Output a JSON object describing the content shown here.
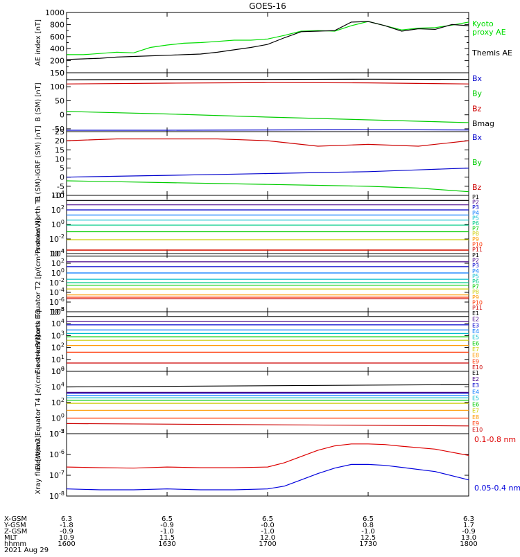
{
  "title": "GOES-16",
  "chart_data": [
    {
      "type": "line",
      "ylabel": "AE index [nT]",
      "ylim": [
        0,
        1000
      ],
      "yticks": [
        "0",
        "200",
        "400",
        "600",
        "800",
        "1000"
      ],
      "yticks_minor": [
        "100",
        "300",
        "500",
        "700",
        "900"
      ],
      "series": [
        {
          "name": "Kyoto proxy AE",
          "color": "#00dd00",
          "x": [
            "1600",
            "1605",
            "1610",
            "1615",
            "1620",
            "1625",
            "1630",
            "1635",
            "1640",
            "1645",
            "1650",
            "1655",
            "1700",
            "1705",
            "1710",
            "1715",
            "1720",
            "1725",
            "1730",
            "1735",
            "1740",
            "1745",
            "1750",
            "1755",
            "1800"
          ],
          "values": [
            300,
            300,
            320,
            340,
            330,
            420,
            460,
            490,
            500,
            520,
            540,
            540,
            560,
            620,
            690,
            700,
            690,
            780,
            850,
            780,
            710,
            740,
            750,
            790,
            840
          ]
        },
        {
          "name": "Themis AE",
          "color": "#000000",
          "x": [
            "1600",
            "1605",
            "1610",
            "1615",
            "1620",
            "1625",
            "1630",
            "1635",
            "1640",
            "1645",
            "1650",
            "1655",
            "1700",
            "1705",
            "1710",
            "1715",
            "1720",
            "1725",
            "1730",
            "1735",
            "1740",
            "1745",
            "1750",
            "1755",
            "1800"
          ],
          "values": [
            220,
            230,
            240,
            260,
            270,
            280,
            290,
            300,
            310,
            340,
            380,
            420,
            470,
            580,
            680,
            690,
            700,
            840,
            850,
            780,
            690,
            730,
            720,
            800,
            780
          ]
        }
      ]
    },
    {
      "type": "line",
      "ylabel": "B (SM) [nT]",
      "ylim": [
        -60,
        150
      ],
      "yticks": [
        "-50",
        "0",
        "50",
        "100",
        "150"
      ],
      "series": [
        {
          "name": "Bx",
          "color": "#0000cc",
          "x": [
            "1600",
            "1630",
            "1700",
            "1730",
            "1800"
          ],
          "values": [
            -55,
            -55,
            -54,
            -53,
            -54
          ]
        },
        {
          "name": "By",
          "color": "#00cc00",
          "x": [
            "1600",
            "1630",
            "1700",
            "1730",
            "1800"
          ],
          "values": [
            12,
            3,
            -8,
            -18,
            -28
          ]
        },
        {
          "name": "Bz",
          "color": "#cc0000",
          "x": [
            "1600",
            "1630",
            "1700",
            "1730",
            "1800"
          ],
          "values": [
            110,
            113,
            115,
            114,
            110
          ]
        },
        {
          "name": "Bmag",
          "color": "#000000",
          "x": [
            "1600",
            "1630",
            "1700",
            "1730",
            "1800"
          ],
          "values": [
            125,
            126,
            126,
            127,
            126
          ]
        }
      ]
    },
    {
      "type": "line",
      "ylabel": "B (SM)-IGRF (SM) [nT]",
      "ylim": [
        -10,
        25
      ],
      "yticks": [
        "-10",
        "-5",
        "0",
        "5",
        "10",
        "15",
        "20",
        "25"
      ],
      "series": [
        {
          "name": "Bx",
          "color": "#0000cc",
          "x": [
            "1600",
            "1615",
            "1630",
            "1645",
            "1700",
            "1715",
            "1730",
            "1745",
            "1800"
          ],
          "values": [
            0,
            0.5,
            1,
            1.5,
            2,
            2.5,
            3,
            4,
            5
          ]
        },
        {
          "name": "By",
          "color": "#00cc00",
          "x": [
            "1600",
            "1615",
            "1630",
            "1645",
            "1700",
            "1715",
            "1730",
            "1745",
            "1800"
          ],
          "values": [
            -2,
            -2.5,
            -3,
            -3.5,
            -4,
            -4.5,
            -5,
            -6,
            -8
          ]
        },
        {
          "name": "Bz",
          "color": "#cc0000",
          "x": [
            "1600",
            "1615",
            "1630",
            "1645",
            "1700",
            "1715",
            "1730",
            "1745",
            "1800"
          ],
          "values": [
            20,
            21,
            21,
            21,
            20,
            17,
            18,
            17,
            20
          ]
        }
      ]
    },
    {
      "type": "line",
      "ylabel": "Protons North T1",
      "ylog": true,
      "ylim": [
        0.0001,
        10000
      ],
      "yticks": [
        "10^-4",
        "10^-2",
        "10^0",
        "10^2",
        "10^4"
      ],
      "series": [
        {
          "name": "P1",
          "color": "#000000",
          "values": [
            2000,
            2000
          ]
        },
        {
          "name": "P2",
          "color": "#440088",
          "values": [
            500,
            500
          ]
        },
        {
          "name": "P3",
          "color": "#0000cc",
          "values": [
            100,
            100
          ]
        },
        {
          "name": "P4",
          "color": "#0077ff",
          "values": [
            20,
            20
          ]
        },
        {
          "name": "P5",
          "color": "#00bbcc",
          "values": [
            4,
            4
          ]
        },
        {
          "name": "P6",
          "color": "#00cc88",
          "values": [
            0.8,
            0.8
          ]
        },
        {
          "name": "P7",
          "color": "#00cc00",
          "values": [
            0.1,
            0.1
          ]
        },
        {
          "name": "P8",
          "color": "#cccc00",
          "values": [
            0.008,
            0.008
          ]
        },
        {
          "name": "P9",
          "color": "#ff9900",
          "values": [
            0.0003,
            0.0003
          ]
        },
        {
          "name": "P10",
          "color": "#ff3300",
          "values": [
            0.0003,
            0.0003
          ]
        },
        {
          "name": "P11",
          "color": "#cc0000",
          "values": [
            0.0003,
            0.0003
          ]
        }
      ]
    },
    {
      "type": "line",
      "ylabel": "Protons Equator T2 [p/(cm²-s-sr-keV)]",
      "ylog": true,
      "ylim": [
        1e-08,
        10000
      ],
      "yticks": [
        "10^-8",
        "10^-6",
        "10^-4",
        "10^-2",
        "10^0",
        "10^2",
        "10^4"
      ],
      "series": [
        {
          "name": "P1",
          "color": "#000000",
          "values": [
            3000,
            3000
          ]
        },
        {
          "name": "P2",
          "color": "#440088",
          "values": [
            200,
            200
          ]
        },
        {
          "name": "P3",
          "color": "#0000cc",
          "values": [
            20,
            20
          ]
        },
        {
          "name": "P4",
          "color": "#0077ff",
          "values": [
            1,
            1
          ]
        },
        {
          "name": "P5",
          "color": "#00bbcc",
          "values": [
            0.05,
            0.05
          ]
        },
        {
          "name": "P6",
          "color": "#00cc88",
          "values": [
            0.01,
            0.01
          ]
        },
        {
          "name": "P7",
          "color": "#00cc00",
          "values": [
            0.003,
            0.003
          ]
        },
        {
          "name": "P8",
          "color": "#cccc00",
          "values": [
            0.0005,
            0.0005
          ]
        },
        {
          "name": "P9",
          "color": "#ff9900",
          "values": [
            3e-05,
            3e-05
          ]
        },
        {
          "name": "P10",
          "color": "#ff3300",
          "values": [
            1e-05,
            1e-05
          ]
        },
        {
          "name": "P11",
          "color": "#cc0000",
          "values": [
            5e-06,
            5e-06
          ]
        }
      ]
    },
    {
      "type": "line",
      "ylabel": "Electrons North T3",
      "ylog": true,
      "ylim": [
        1,
        100000
      ],
      "yticks": [
        "10^0",
        "10^1",
        "10^2",
        "10^3",
        "10^4",
        "10^5"
      ],
      "series": [
        {
          "name": "E1",
          "color": "#000000",
          "values": [
            40000,
            40000
          ]
        },
        {
          "name": "E2",
          "color": "#440088",
          "values": [
            15000,
            15000
          ]
        },
        {
          "name": "E3",
          "color": "#0000cc",
          "values": [
            8000,
            8000
          ]
        },
        {
          "name": "E4",
          "color": "#0077ff",
          "values": [
            3000,
            3000
          ]
        },
        {
          "name": "E5",
          "color": "#00bbcc",
          "values": [
            1500,
            1500
          ]
        },
        {
          "name": "E6",
          "color": "#00cc00",
          "values": [
            800,
            800
          ]
        },
        {
          "name": "E7",
          "color": "#cccc00",
          "values": [
            400,
            400
          ]
        },
        {
          "name": "E8",
          "color": "#ff9900",
          "values": [
            150,
            150
          ]
        },
        {
          "name": "E9",
          "color": "#ff3300",
          "values": [
            40,
            40
          ]
        },
        {
          "name": "E10",
          "color": "#cc0000",
          "values": [
            5,
            5
          ]
        }
      ]
    },
    {
      "type": "line",
      "ylabel": "Electrons Equator T4 [e/(cm²-s-sr-keV)]",
      "ylog": true,
      "ylim": [
        0.01,
        1000000
      ],
      "yticks": [
        "10^-2",
        "10^0",
        "10^2",
        "10^4",
        "10^6"
      ],
      "series": [
        {
          "name": "E1",
          "color": "#000000",
          "values": [
            10000,
            20000
          ]
        },
        {
          "name": "E2",
          "color": "#440088",
          "values": [
            2000,
            2000
          ]
        },
        {
          "name": "E3",
          "color": "#0000cc",
          "values": [
            1500,
            1500
          ]
        },
        {
          "name": "E4",
          "color": "#0077ff",
          "values": [
            800,
            800
          ]
        },
        {
          "name": "E5",
          "color": "#00bbcc",
          "values": [
            400,
            400
          ]
        },
        {
          "name": "E6",
          "color": "#00cc00",
          "values": [
            200,
            200
          ]
        },
        {
          "name": "E7",
          "color": "#cccc00",
          "values": [
            80,
            80
          ]
        },
        {
          "name": "E8",
          "color": "#ff9900",
          "values": [
            10,
            10
          ]
        },
        {
          "name": "E9",
          "color": "#ff3300",
          "values": [
            1,
            1
          ]
        },
        {
          "name": "E10",
          "color": "#cc0000",
          "values": [
            0.2,
            0.1
          ]
        }
      ]
    },
    {
      "type": "line",
      "ylabel": "Xray flux [W/m2]",
      "ylog": true,
      "ylim": [
        1e-08,
        1e-05
      ],
      "yticks": [
        "10^-8",
        "10^-7",
        "10^-6",
        "10^-5"
      ],
      "series": [
        {
          "name": "0.1-0.8 nm",
          "color": "#dd0000",
          "x": [
            "1600",
            "1610",
            "1620",
            "1630",
            "1640",
            "1650",
            "1700",
            "1705",
            "1710",
            "1715",
            "1720",
            "1725",
            "1730",
            "1735",
            "1740",
            "1750",
            "1800"
          ],
          "values": [
            2.5e-07,
            2.3e-07,
            2.2e-07,
            2.5e-07,
            2.3e-07,
            2.3e-07,
            2.5e-07,
            4e-07,
            8e-07,
            1.6e-06,
            2.6e-06,
            3.2e-06,
            3.2e-06,
            3e-06,
            2.5e-06,
            1.8e-06,
            9e-07
          ]
        },
        {
          "name": "0.05-0.4 nm",
          "color": "#0000dd",
          "x": [
            "1600",
            "1610",
            "1620",
            "1630",
            "1640",
            "1650",
            "1700",
            "1705",
            "1710",
            "1715",
            "1720",
            "1725",
            "1730",
            "1735",
            "1740",
            "1750",
            "1800"
          ],
          "values": [
            2.2e-08,
            2e-08,
            2e-08,
            2.2e-08,
            2e-08,
            2e-08,
            2.2e-08,
            3e-08,
            6e-08,
            1.2e-07,
            2.2e-07,
            3.3e-07,
            3.3e-07,
            3e-07,
            2.4e-07,
            1.5e-07,
            6e-08
          ]
        }
      ]
    }
  ],
  "x_ticks": [
    "1600",
    "1630",
    "1700",
    "1730",
    "1800"
  ],
  "ephemeris": {
    "labels": [
      "X-GSM",
      "Y-GSM",
      "Z-GSM",
      "MLT",
      "hhmm"
    ],
    "rows": [
      [
        "6.3",
        "6.5",
        "6.5",
        "6.5",
        "6.3"
      ],
      [
        "-1.8",
        "-0.9",
        "-0.0",
        "0.8",
        "1.7"
      ],
      [
        "-0.9",
        "-1.0",
        "-1.0",
        "-1.0",
        "-0.9"
      ],
      [
        "10.9",
        "11.5",
        "12.0",
        "12.5",
        "13.0"
      ],
      [
        "1600",
        "1630",
        "1700",
        "1730",
        "1800"
      ]
    ],
    "date": "2021 Aug 29"
  }
}
